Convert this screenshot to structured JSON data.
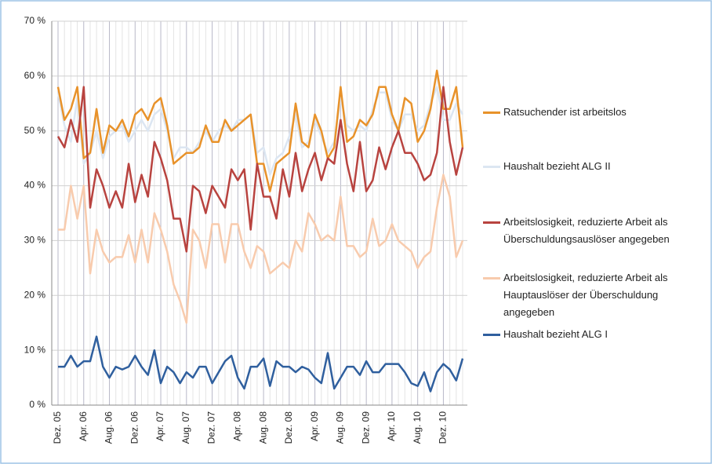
{
  "chart_data": {
    "type": "line",
    "categories": [
      "Dez. 05",
      null,
      null,
      null,
      "Apr. 06",
      null,
      null,
      null,
      "Aug. 06",
      null,
      null,
      null,
      "Dez. 06",
      null,
      null,
      null,
      "Apr. 07",
      null,
      null,
      null,
      "Aug. 07",
      null,
      null,
      null,
      "Dez. 07",
      null,
      null,
      null,
      "Apr. 08",
      null,
      null,
      null,
      "Aug. 08",
      null,
      null,
      null,
      "Dez. 08",
      null,
      null,
      null,
      "Apr. 09",
      null,
      null,
      null,
      "Aug. 09",
      null,
      null,
      null,
      "Dez. 09",
      null,
      null,
      null,
      "Apr. 10",
      null,
      null,
      null,
      "Aug. 10",
      null,
      null,
      null,
      "Dez. 10",
      null,
      null,
      null
    ],
    "series": [
      {
        "name": "Ratsuchender ist arbeitslos",
        "color": "#e8922a",
        "values": [
          58,
          52,
          54,
          58,
          45,
          46,
          54,
          46,
          51,
          50,
          52,
          49,
          53,
          54,
          52,
          55,
          56,
          51,
          44,
          45,
          46,
          46,
          47,
          51,
          48,
          48,
          52,
          50,
          51,
          52,
          53,
          44,
          44,
          39,
          44,
          45,
          46,
          55,
          48,
          47,
          53,
          50,
          45,
          47,
          58,
          48,
          49,
          52,
          51,
          53,
          58,
          58,
          53,
          50,
          56,
          55,
          48,
          50,
          54,
          61,
          54,
          54,
          58,
          47
        ]
      },
      {
        "name": "Haushalt bezieht ALG II",
        "color": "#dce6f2",
        "values": [
          57,
          51,
          48,
          56,
          44,
          46,
          50,
          45,
          49,
          50,
          51,
          48,
          50,
          52,
          50,
          53,
          54,
          50,
          45,
          47,
          47,
          46,
          48,
          50,
          48,
          50,
          51,
          50,
          52,
          52,
          53,
          46,
          47,
          42,
          45,
          46,
          49,
          53,
          47,
          48,
          52,
          49,
          46,
          48,
          56,
          51,
          50,
          51,
          50,
          54,
          57,
          57,
          52,
          50,
          53,
          53,
          50,
          51,
          55,
          58,
          52,
          52,
          55,
          53
        ]
      },
      {
        "name": "Arbeitslosigkeit, reduzierte Arbeit als Überschuldungsauslöser angegeben",
        "color": "#b8433f",
        "values": [
          49,
          47,
          52,
          48,
          58,
          36,
          43,
          40,
          36,
          39,
          36,
          44,
          37,
          42,
          38,
          48,
          45,
          41,
          34,
          34,
          28,
          40,
          39,
          35,
          40,
          38,
          36,
          43,
          41,
          43,
          32,
          44,
          38,
          38,
          34,
          43,
          38,
          46,
          39,
          43,
          46,
          41,
          45,
          44,
          52,
          44,
          39,
          48,
          39,
          41,
          47,
          43,
          47,
          50,
          46,
          46,
          44,
          41,
          42,
          46,
          58,
          48,
          42,
          47
        ]
      },
      {
        "name": "Arbeitslosigkeit, reduzierte Arbeit als Hauptauslöser der Überschuldung angegeben",
        "color": "#f8cbad",
        "values": [
          32,
          32,
          40,
          34,
          40,
          24,
          32,
          28,
          26,
          27,
          27,
          31,
          26,
          32,
          26,
          35,
          32,
          28,
          22,
          19,
          15,
          32,
          30,
          25,
          33,
          33,
          26,
          33,
          33,
          28,
          25,
          29,
          28,
          24,
          25,
          26,
          25,
          30,
          28,
          35,
          33,
          30,
          31,
          30,
          38,
          29,
          29,
          27,
          28,
          34,
          29,
          30,
          33,
          30,
          29,
          28,
          25,
          27,
          28,
          36,
          42,
          38,
          27,
          30
        ]
      },
      {
        "name": "Haushalt bezieht ALG I",
        "color": "#2f5f9e",
        "values": [
          7,
          7,
          9,
          7,
          8,
          8,
          12.5,
          7,
          5,
          7,
          6.5,
          7,
          9,
          7,
          5.5,
          10,
          4,
          7,
          6,
          4,
          6,
          5,
          7,
          7,
          4,
          6,
          8,
          9,
          5,
          3,
          7,
          7,
          8.5,
          3.5,
          8,
          7,
          7,
          6,
          7,
          6.5,
          5,
          4,
          9.5,
          3,
          5,
          7,
          7,
          5.5,
          8,
          6,
          6,
          7.5,
          7.5,
          7.5,
          6,
          4,
          3.5,
          6,
          2.5,
          6,
          7.5,
          6.5,
          4.5,
          8.5
        ]
      }
    ],
    "ylim": [
      0,
      70
    ],
    "yticks": [
      {
        "value": 0,
        "label": "0 %"
      },
      {
        "value": 10,
        "label": "10 %"
      },
      {
        "value": 20,
        "label": "20 %"
      },
      {
        "value": 30,
        "label": "30 %"
      },
      {
        "value": 40,
        "label": "40 %"
      },
      {
        "value": 50,
        "label": "50 %"
      },
      {
        "value": 60,
        "label": "60 %"
      },
      {
        "value": 70,
        "label": "70 %"
      }
    ],
    "grid": true,
    "legend": "right"
  }
}
